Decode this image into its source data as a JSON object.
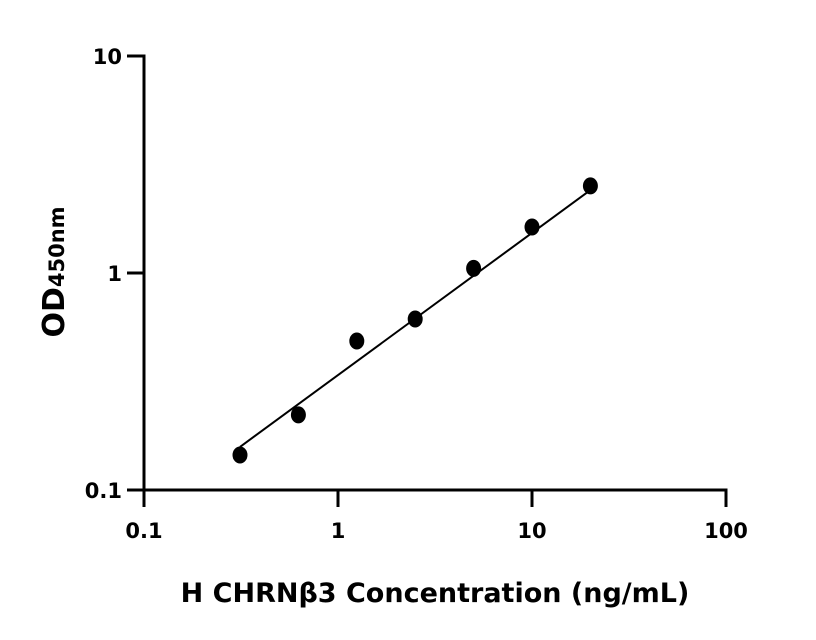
{
  "chart_data": {
    "type": "scatter",
    "title": "",
    "xlabel": "H CHRNβ3 Concentration (ng/mL)",
    "ylabel_main": "OD",
    "ylabel_sub": "450nm",
    "x_scale": "log",
    "y_scale": "log",
    "xlim": [
      0.1,
      100
    ],
    "ylim": [
      0.1,
      10
    ],
    "x_ticks": [
      0.1,
      1,
      10,
      100
    ],
    "x_tick_labels": [
      "0.1",
      "1",
      "10",
      "100"
    ],
    "y_ticks": [
      0.1,
      1,
      10
    ],
    "y_tick_labels": [
      "0.1",
      "1",
      "10"
    ],
    "grid": false,
    "legend": "none",
    "marker_color": "#000000",
    "points": {
      "x": [
        0.3125,
        0.625,
        1.25,
        2.5,
        5,
        10,
        20
      ],
      "y": [
        0.145,
        0.222,
        0.486,
        0.614,
        1.05,
        1.63,
        2.52
      ]
    },
    "fit_line": {
      "x": [
        0.3125,
        20
      ],
      "y": [
        0.158,
        2.41
      ]
    }
  }
}
